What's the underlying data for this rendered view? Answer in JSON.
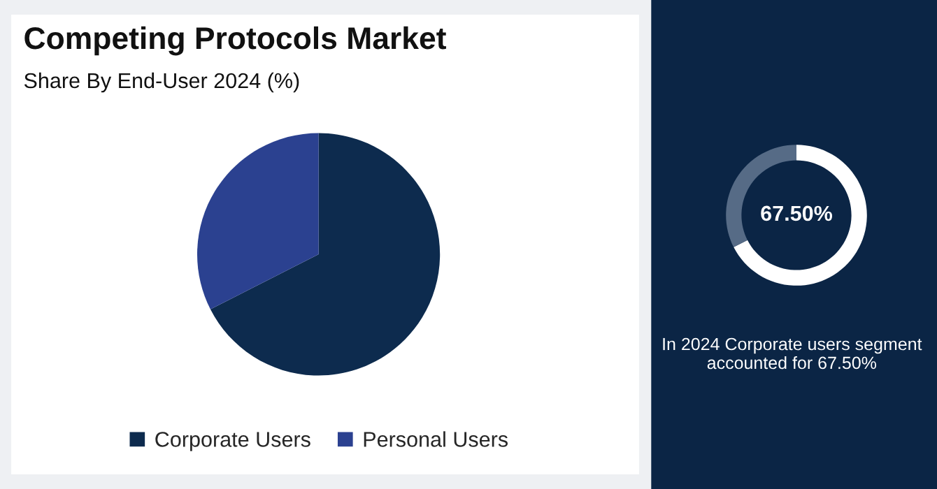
{
  "chart_data": [
    {
      "type": "pie",
      "title": "Competing Protocols Market",
      "subtitle": "Share By End-User 2024 (%)",
      "categories": [
        "Corporate Users",
        "Personal Users"
      ],
      "values": [
        67.5,
        32.5
      ],
      "colors": [
        "#0d2b4e",
        "#2b4190"
      ],
      "legend": "bottom"
    },
    {
      "type": "donut",
      "categories": [
        null,
        null
      ],
      "values": [
        67.5,
        32.5
      ],
      "colors": [
        "#ffffff",
        "#566b86"
      ],
      "value_labels": [
        "67.50%",
        null
      ],
      "annotations": [
        "In 2024 Corporate users segment accounted for 67.50%"
      ]
    }
  ]
}
